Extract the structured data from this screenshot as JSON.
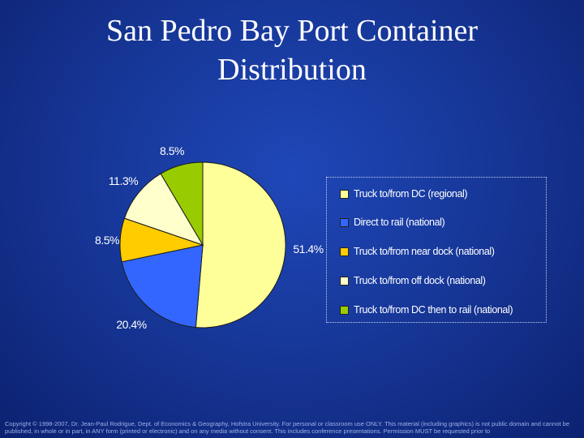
{
  "title_line1": "San Pedro Bay Port Container",
  "title_line2": "Distribution",
  "chart_data": {
    "type": "pie",
    "series": [
      {
        "name": "Truck to/from DC (regional)",
        "value": 51.4,
        "label": "51.4%",
        "color": "#ffff99"
      },
      {
        "name": "Direct to rail (national)",
        "value": 20.4,
        "label": "20.4%",
        "color": "#3366ff"
      },
      {
        "name": "Truck to/from near dock (national)",
        "value": 8.5,
        "label": "8.5%",
        "color": "#ffcc00"
      },
      {
        "name": "Truck to/from off dock (national)",
        "value": 11.3,
        "label": "11.3%",
        "color": "#ffffcc"
      },
      {
        "name": "Truck to/from DC then to rail (national)",
        "value": 8.5,
        "label": "8.5%",
        "color": "#99cc00"
      }
    ],
    "legend_position": "right"
  },
  "copyright": "Copyright © 1998-2007, Dr. Jean-Paul Rodrigue, Dept. of Economics & Geography, Hofstra University. For personal or classroom use ONLY. This material (including graphics) is not public domain and cannot be published, in whole or in part, in ANY form (printed or electronic) and on any media without consent. This includes conference presentations. Permission MUST be requested prior to"
}
